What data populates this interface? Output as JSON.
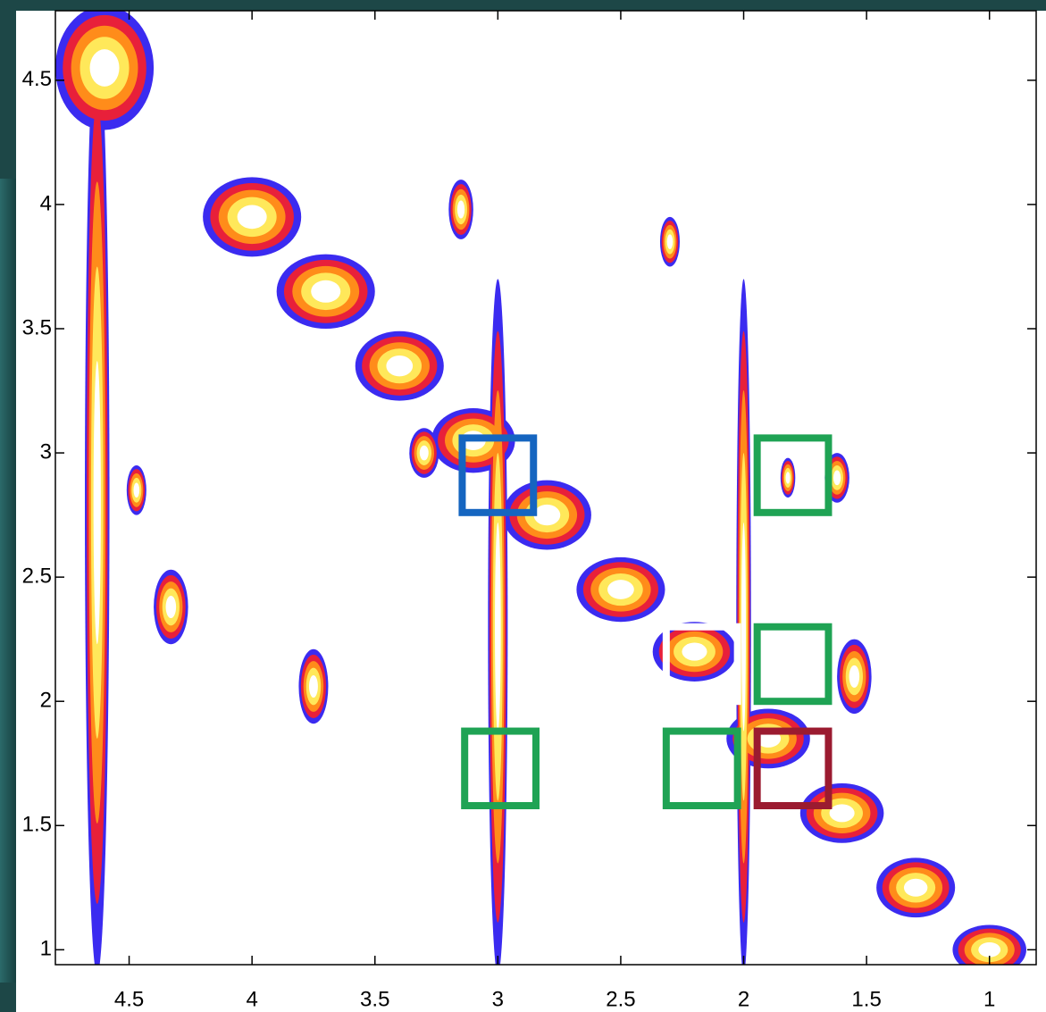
{
  "chart_data": {
    "type": "contour",
    "xlim": [
      4.8,
      0.81
    ],
    "ylim": [
      0.94,
      4.78
    ],
    "xticks": [
      4.5,
      4,
      3.5,
      3,
      2.5,
      2,
      1.5,
      1
    ],
    "yticks": [
      1,
      1.5,
      2,
      2.5,
      3,
      3.5,
      4,
      4.5
    ],
    "peaks": {
      "x": [
        4.6,
        4.0,
        3.7,
        3.4,
        3.1,
        2.8,
        2.5,
        2.2,
        1.9,
        1.6,
        1.3,
        1.0,
        4.63,
        3.0,
        2.0,
        4.33,
        3.75,
        1.62,
        1.55,
        3.15,
        2.3,
        4.47,
        3.3,
        1.82
      ],
      "y": [
        4.55,
        3.95,
        3.65,
        3.35,
        3.05,
        2.75,
        2.45,
        2.2,
        1.85,
        1.55,
        1.25,
        1.0,
        2.8,
        2.3,
        2.3,
        2.38,
        2.06,
        2.9,
        2.1,
        3.98,
        3.85,
        2.85,
        3.0,
        2.9
      ],
      "rx": [
        0.2,
        0.2,
        0.2,
        0.18,
        0.17,
        0.18,
        0.18,
        0.17,
        0.17,
        0.17,
        0.16,
        0.15,
        0.05,
        0.04,
        0.03,
        0.07,
        0.06,
        0.05,
        0.07,
        0.05,
        0.04,
        0.04,
        0.06,
        0.03
      ],
      "ry": [
        0.25,
        0.16,
        0.15,
        0.14,
        0.13,
        0.14,
        0.13,
        0.12,
        0.12,
        0.12,
        0.12,
        0.1,
        1.9,
        1.4,
        1.4,
        0.15,
        0.15,
        0.1,
        0.15,
        0.12,
        0.1,
        0.1,
        0.1,
        0.08
      ]
    },
    "contour_colors": [
      "#3b2bf0",
      "#e8203a",
      "#ff8c1a",
      "#ffe85a",
      "#ffffff"
    ],
    "box_size": [
      0.29,
      0.3
    ],
    "boxes": [
      {
        "x": 3.0,
        "y": 2.91,
        "color": "#1565c0"
      },
      {
        "x": 1.8,
        "y": 2.91,
        "color": "#1fa354"
      },
      {
        "x": 2.17,
        "y": 2.15,
        "color": "#ffffff"
      },
      {
        "x": 1.8,
        "y": 2.15,
        "color": "#1fa354"
      },
      {
        "x": 2.99,
        "y": 1.73,
        "color": "#1fa354"
      },
      {
        "x": 2.17,
        "y": 1.73,
        "color": "#1fa354"
      },
      {
        "x": 1.8,
        "y": 1.73,
        "color": "#9b1b30"
      }
    ]
  }
}
